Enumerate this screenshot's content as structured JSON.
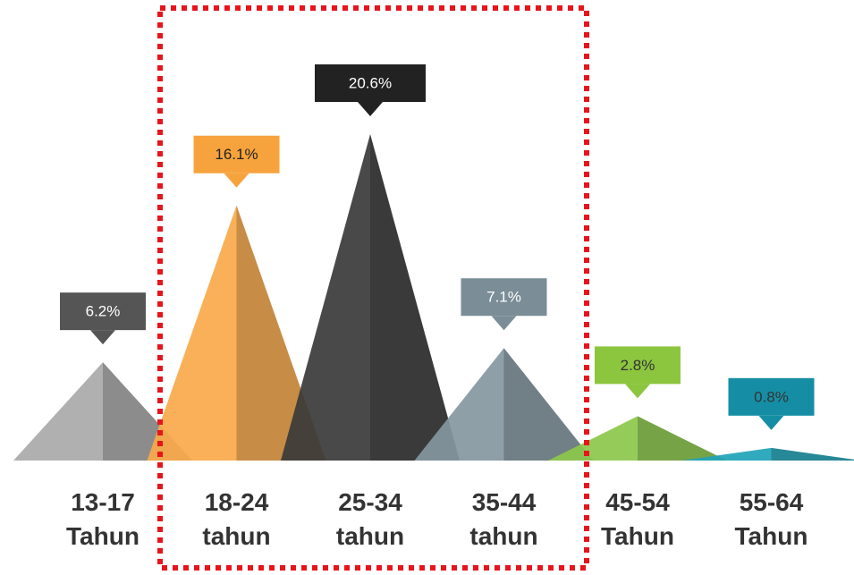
{
  "chart_data": {
    "type": "triangle",
    "categories": [
      "13-17 Tahun",
      "18-24 tahun",
      "25-34 tahun",
      "35-44 tahun",
      "45-54 Tahun",
      "55-64 Tahun"
    ],
    "values": [
      6.2,
      16.1,
      20.6,
      7.1,
      2.8,
      0.8
    ],
    "value_labels": [
      "6.2%",
      "16.1%",
      "20.6%",
      "7.1%",
      "2.8%",
      "0.8%"
    ],
    "colors": [
      "#a9a9a9",
      "#f8a94a",
      "#3a3a3a",
      "#8497a1",
      "#8cc84b",
      "#1fa3b8"
    ],
    "label_colors": [
      "#555555",
      "#f7a33d",
      "#222222",
      "#7b8d97",
      "#8cc63f",
      "#158ea5"
    ],
    "label_text_colors": [
      "#ffffff",
      "#222222",
      "#ffffff",
      "#ffffff",
      "#333333",
      "#333333"
    ]
  }
}
